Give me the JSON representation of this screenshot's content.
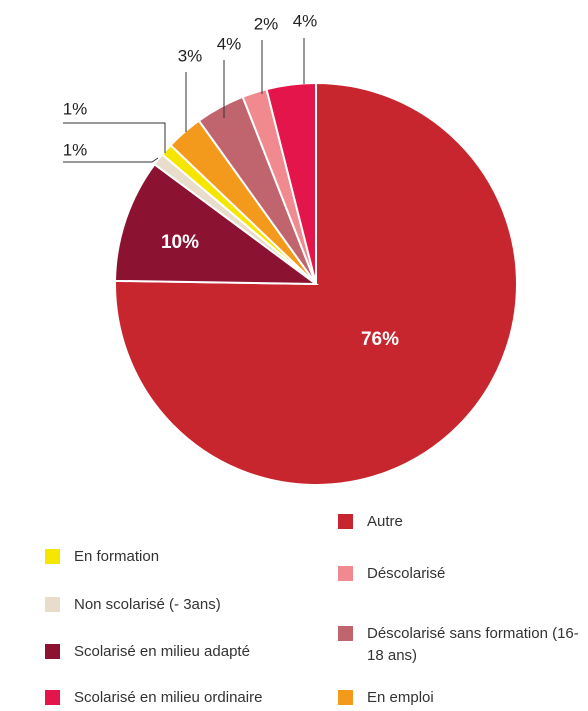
{
  "chart_data": {
    "type": "pie",
    "categories": [
      "Autre",
      "Scolarisé en milieu adapté",
      "Non scolarisé (- 3ans)",
      "En formation",
      "En emploi",
      "Déscolarisé sans formation (16-18 ans)",
      "Déscolarisé",
      "Scolarisé en milieu ordinaire"
    ],
    "values": [
      76,
      10,
      1,
      1,
      3,
      4,
      2,
      4
    ],
    "value_labels": [
      "76%",
      "10%",
      "1%",
      "1%",
      "3%",
      "4%",
      "2%",
      "4%"
    ],
    "colors": [
      "#c8262f",
      "#8b1230",
      "#e8dccb",
      "#f5e600",
      "#f39a1c",
      "#c0646e",
      "#f08a8f",
      "#e4154b"
    ]
  }
}
